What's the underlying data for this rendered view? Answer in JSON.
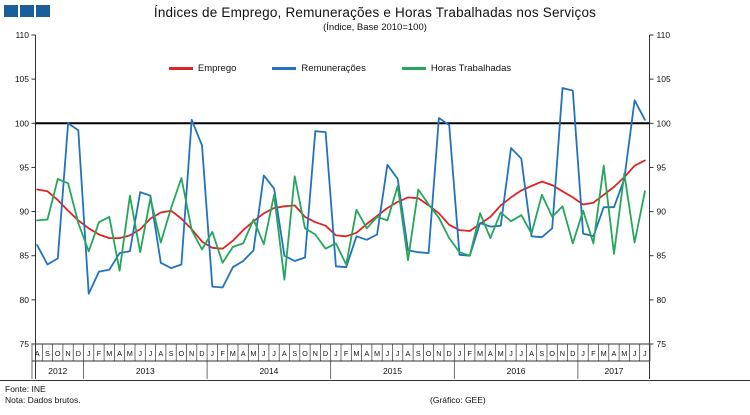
{
  "header": {
    "title": "Índices de Emprego, Remunerações e Horas Trabalhadas nos Serviços",
    "subtitle": "(Índice, Base 2010=100)",
    "logo_color": "#1A5E9A",
    "logo_squares": 3
  },
  "chart_data": {
    "type": "line",
    "title": "Índices de Emprego, Remunerações e Horas Trabalhadas nos Serviços",
    "subtitle": "(Índice, Base 2010=100)",
    "ylim": [
      75,
      110
    ],
    "yticks": [
      75,
      80,
      85,
      90,
      95,
      100,
      105,
      110
    ],
    "reference_line": 100,
    "grid": false,
    "legend_position": "top-center",
    "x_month_labels": [
      "A",
      "S",
      "O",
      "N",
      "D",
      "J",
      "F",
      "M",
      "A",
      "M",
      "J",
      "J",
      "A",
      "S",
      "O",
      "N",
      "D",
      "J",
      "F",
      "M",
      "A",
      "M",
      "J",
      "J",
      "A",
      "S",
      "O",
      "N",
      "D",
      "J",
      "F",
      "M",
      "A",
      "M",
      "J",
      "J",
      "A",
      "S",
      "O",
      "N",
      "D",
      "J",
      "F",
      "M",
      "A",
      "M",
      "J",
      "J",
      "A",
      "S",
      "O",
      "N",
      "D",
      "J",
      "F",
      "M",
      "A",
      "M",
      "J",
      "J"
    ],
    "year_groups": [
      {
        "year": "2012",
        "months": 5
      },
      {
        "year": "2013",
        "months": 12
      },
      {
        "year": "2014",
        "months": 12
      },
      {
        "year": "2015",
        "months": 12
      },
      {
        "year": "2016",
        "months": 12
      },
      {
        "year": "2017",
        "months": 7
      }
    ],
    "series": [
      {
        "name": "Emprego",
        "color": "#DE2420",
        "values": [
          92.5,
          92.3,
          91.3,
          90.1,
          89.0,
          88.1,
          87.4,
          87.0,
          87.0,
          87.3,
          88.0,
          89.2,
          89.9,
          90.1,
          89.2,
          88.0,
          86.6,
          85.9,
          85.8,
          86.7,
          87.9,
          88.9,
          89.8,
          90.4,
          90.6,
          90.7,
          89.4,
          88.8,
          88.4,
          87.3,
          87.2,
          87.6,
          88.6,
          89.5,
          90.4,
          91.1,
          91.6,
          91.5,
          90.7,
          89.8,
          88.5,
          87.9,
          87.8,
          88.6,
          89.4,
          90.7,
          91.6,
          92.4,
          92.9,
          93.4,
          93.0,
          92.3,
          91.6,
          90.8,
          91.0,
          91.9,
          92.8,
          93.9,
          95.2,
          95.8
        ]
      },
      {
        "name": "Remunerações",
        "color": "#2272BE",
        "values": [
          86.2,
          84.0,
          84.7,
          100.0,
          99.2,
          80.7,
          83.2,
          83.4,
          85.3,
          85.5,
          92.2,
          91.8,
          84.2,
          83.6,
          84.0,
          100.4,
          97.5,
          81.5,
          81.4,
          83.7,
          84.4,
          85.6,
          94.1,
          92.6,
          85.0,
          84.4,
          84.8,
          99.1,
          99.0,
          83.8,
          83.7,
          87.2,
          86.8,
          87.4,
          95.3,
          93.7,
          85.6,
          85.4,
          85.3,
          100.6,
          99.8,
          85.1,
          85.0,
          88.7,
          88.3,
          88.4,
          97.2,
          96.0,
          87.2,
          87.1,
          88.1,
          104.0,
          103.7,
          87.5,
          87.2,
          90.5,
          90.5,
          93.7,
          102.6,
          100.4
        ]
      },
      {
        "name": "Horas Trabalhadas",
        "color": "#26A65B",
        "values": [
          89.0,
          89.1,
          93.7,
          93.2,
          88.7,
          85.5,
          88.8,
          89.4,
          83.3,
          91.8,
          85.4,
          91.5,
          86.5,
          90.4,
          93.8,
          87.9,
          85.7,
          87.7,
          84.2,
          86.0,
          86.4,
          89.1,
          86.3,
          91.9,
          82.3,
          94.0,
          88.1,
          87.4,
          85.8,
          86.4,
          84.0,
          90.2,
          88.1,
          89.4,
          89.0,
          92.9,
          84.5,
          92.5,
          90.8,
          89.3,
          87.0,
          85.4,
          85.0,
          89.8,
          87.0,
          89.9,
          88.9,
          89.6,
          87.5,
          91.9,
          89.4,
          90.6,
          86.4,
          90.1,
          86.4,
          95.2,
          85.2,
          94.3,
          86.5,
          92.3
        ]
      }
    ]
  },
  "footer": {
    "source": "Fonte: INE",
    "note": "Nota: Dados brutos.",
    "credit": "(Gráfico: GEE)"
  }
}
